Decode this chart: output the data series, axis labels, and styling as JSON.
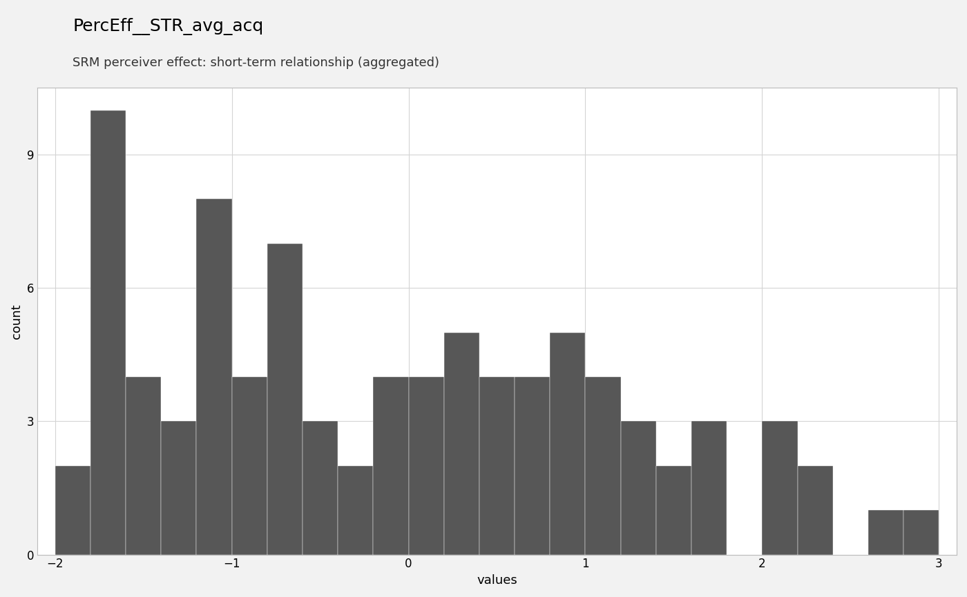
{
  "title": "PercEff__STR_avg_acq",
  "subtitle": "SRM perceiver effect: short-term relationship (aggregated)",
  "xlabel": "values",
  "ylabel": "count",
  "bar_color": "#575757",
  "bg_color": "#f2f2f2",
  "plot_bg_color": "#ffffff",
  "grid_color": "#d4d4d4",
  "xlim": [
    -2.1,
    3.1
  ],
  "ylim": [
    0,
    10.5
  ],
  "yticks": [
    0,
    3,
    6,
    9
  ],
  "xticks": [
    -2,
    -1,
    0,
    1,
    2,
    3
  ],
  "bin_edges": [
    -1.9,
    -1.7,
    -1.5,
    -1.3,
    -1.1,
    -0.9,
    -0.7,
    -0.5,
    -0.3,
    -0.1,
    0.1,
    0.3,
    0.5,
    0.7,
    0.9,
    1.1,
    1.3,
    1.5,
    1.7,
    1.9,
    2.1,
    2.3,
    2.5,
    2.7,
    2.9
  ],
  "counts": [
    2,
    10,
    4,
    3,
    8,
    4,
    7,
    3,
    2,
    4,
    4,
    5,
    4,
    4,
    5,
    4,
    3,
    2,
    3,
    0,
    3,
    2,
    0,
    1,
    1
  ],
  "bar_width": 0.2,
  "title_fontsize": 18,
  "subtitle_fontsize": 13,
  "axis_label_fontsize": 13,
  "tick_fontsize": 12,
  "frame_color": "#bbbbbb"
}
